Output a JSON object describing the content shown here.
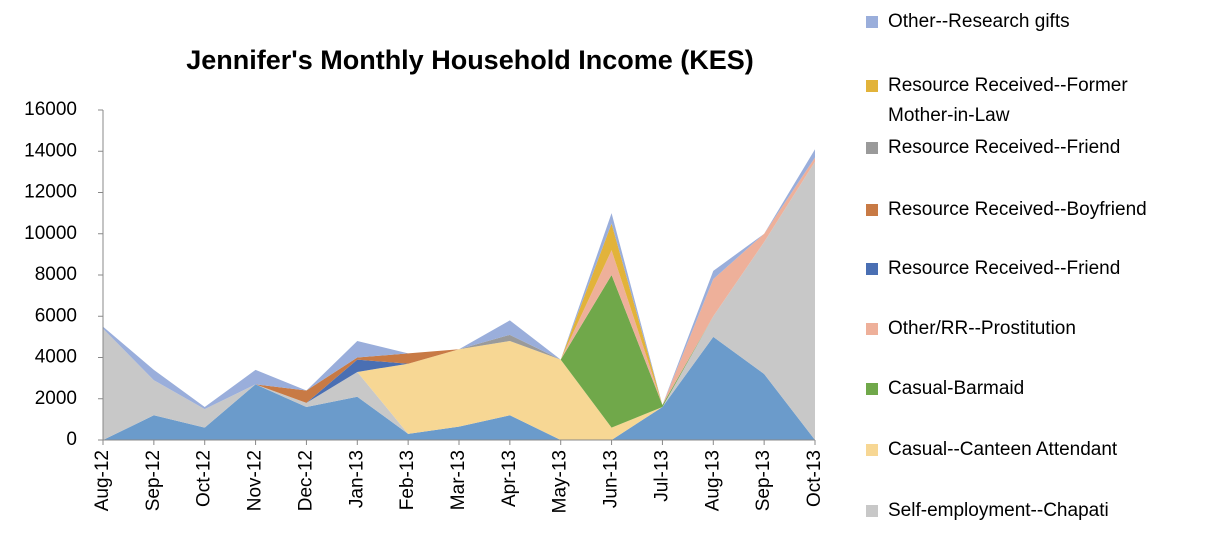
{
  "chart_data": {
    "type": "stacked-area",
    "title": "Jennifer's Monthly Household Income (KES)",
    "categories": [
      "Aug-12",
      "Sep-12",
      "Oct-12",
      "Nov-12",
      "Dec-12",
      "Jan-13",
      "Feb-13",
      "Mar-13",
      "Apr-13",
      "May-13",
      "Jun-13",
      "Jul-13",
      "Aug-13",
      "Sep-13",
      "Oct-13"
    ],
    "ylim": [
      0,
      16000
    ],
    "yticks": [
      0,
      2000,
      4000,
      6000,
      8000,
      10000,
      12000,
      14000,
      16000
    ],
    "series": [
      {
        "color": "#6b9bcb",
        "values": [
          0,
          1200,
          600,
          2700,
          1600,
          2100,
          300,
          650,
          1200,
          0,
          0,
          1600,
          5000,
          3200,
          0
        ]
      },
      {
        "name": "Self-employment--Chapati",
        "color": "#c8c8c8",
        "values": [
          5400,
          1700,
          900,
          0,
          200,
          1200,
          0,
          0,
          0,
          0,
          0,
          0,
          1000,
          6400,
          13500
        ]
      },
      {
        "name": "Casual--Canteen Attendant",
        "color": "#f7d794",
        "values": [
          0,
          0,
          0,
          0,
          0,
          0,
          3400,
          3750,
          3600,
          3900,
          600,
          0,
          0,
          0,
          0
        ]
      },
      {
        "name": "Casual-Barmaid",
        "color": "#70a84a",
        "values": [
          0,
          0,
          0,
          0,
          0,
          0,
          0,
          0,
          0,
          0,
          7400,
          100,
          0,
          0,
          0
        ]
      },
      {
        "name": "Other/RR--Prostitution",
        "color": "#eeb09a",
        "values": [
          0,
          0,
          0,
          0,
          0,
          0,
          0,
          0,
          0,
          0,
          1200,
          0,
          1800,
          400,
          200
        ]
      },
      {
        "name": "Resource Received--Friend",
        "color": "#4a6fb3",
        "values": [
          0,
          0,
          0,
          0,
          0,
          600,
          0,
          0,
          0,
          0,
          0,
          0,
          0,
          0,
          0
        ]
      },
      {
        "name": "Resource Received--Boyfriend",
        "color": "#c87a45",
        "values": [
          0,
          0,
          0,
          0,
          600,
          100,
          500,
          0,
          0,
          0,
          0,
          0,
          0,
          0,
          0
        ]
      },
      {
        "name": "Resource Received--Friend",
        "color": "#9a9a9a",
        "values": [
          0,
          0,
          0,
          0,
          0,
          0,
          0,
          0,
          300,
          0,
          0,
          0,
          0,
          0,
          0
        ]
      },
      {
        "name": "Resource Received--Former Mother-in-Law",
        "color": "#e2b33a",
        "values": [
          0,
          0,
          0,
          0,
          0,
          0,
          0,
          0,
          0,
          0,
          1300,
          0,
          0,
          0,
          0
        ]
      },
      {
        "name": "Other--Research gifts",
        "color": "#9aaedb",
        "values": [
          100,
          500,
          100,
          700,
          0,
          800,
          0,
          0,
          700,
          0,
          500,
          0,
          400,
          0,
          400
        ]
      }
    ]
  }
}
